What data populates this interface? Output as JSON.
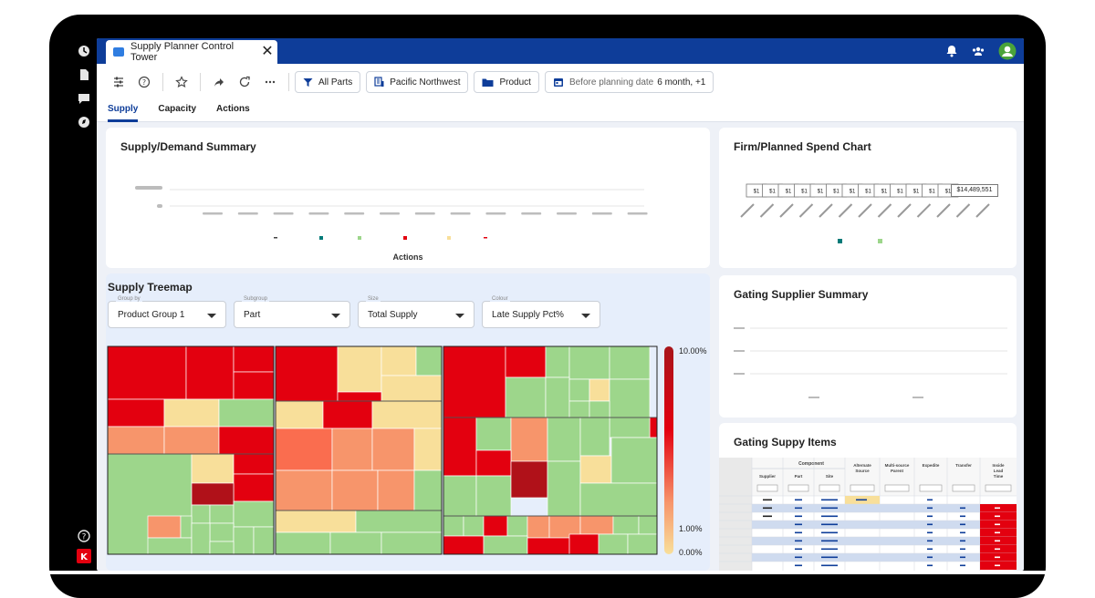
{
  "window": {
    "tab_title": "Supply Planner Control Tower",
    "tab_close": "✕"
  },
  "toolbar": {
    "filters": [
      {
        "label": "All Parts",
        "icon": "filter-icon"
      },
      {
        "label": "Pacific Northwest",
        "icon": "location-icon"
      },
      {
        "label": "Product",
        "icon": "folder-icon"
      }
    ],
    "date_filter": {
      "prefix": "Before planning date",
      "value": "6 month, +1"
    }
  },
  "subtabs": [
    "Supply",
    "Capacity",
    "Actions"
  ],
  "supply_demand": {
    "title": "Supply/Demand Summary",
    "xlabel": "Actions"
  },
  "spend_chart": {
    "title": "Firm/Planned Spend Chart",
    "last_label": "$14,489,551",
    "small_label": "$1"
  },
  "treemap": {
    "title": "Supply Treemap",
    "dropdowns": [
      {
        "label": "Group by",
        "value": "Product Group 1"
      },
      {
        "label": "Subgroup",
        "value": "Part"
      },
      {
        "label": "Size",
        "value": "Total Supply"
      },
      {
        "label": "Colour",
        "value": "Late Supply Pct%"
      }
    ],
    "scale": {
      "max": "10.00%",
      "mid": "1.00%",
      "min": "0.00%"
    }
  },
  "gating_supplier": {
    "title": "Gating Supplier Summary"
  },
  "gating_items": {
    "title": "Gating Suppy Items",
    "group_header": "Component",
    "columns": [
      "Supplier",
      "Part",
      "Site",
      "Alternate Source",
      "Multi-source Parent",
      "Expedite",
      "Transfer",
      "Inside Lead Time"
    ]
  },
  "colors": {
    "primary": "#0e3d99",
    "accent_red": "#e3000f",
    "green": "#9dd68b",
    "salmon": "#f7956b",
    "cream": "#f8df9a"
  }
}
